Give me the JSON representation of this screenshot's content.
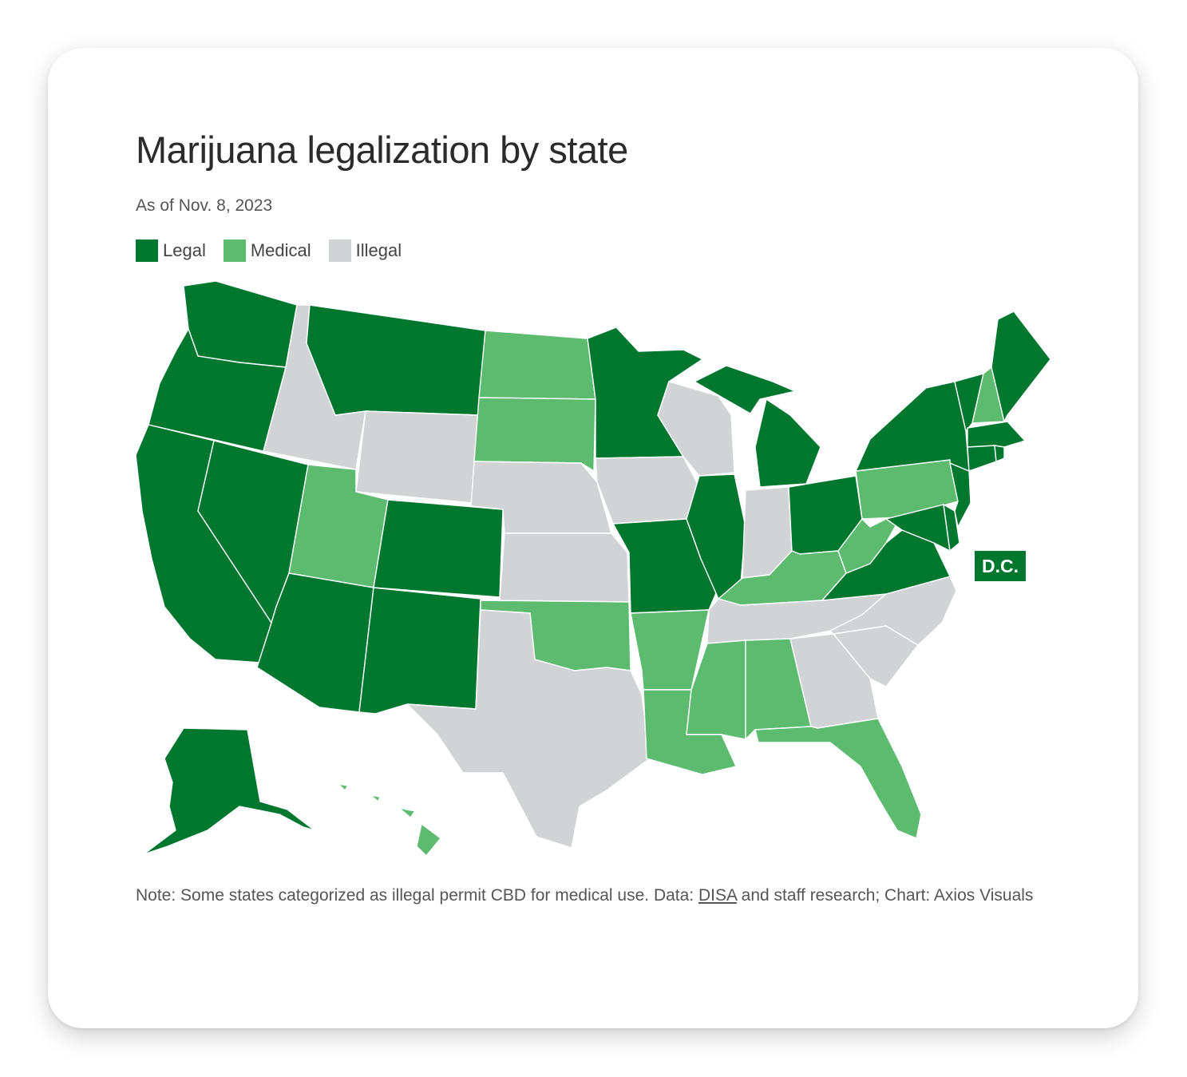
{
  "title": "Marijuana legalization by state",
  "subtitle": "As of Nov. 8, 2023",
  "legend": [
    {
      "label": "Legal",
      "color": "#00772f",
      "key": "legal"
    },
    {
      "label": "Medical",
      "color": "#5dbb70",
      "key": "medical"
    },
    {
      "label": "Illegal",
      "color": "#d1d3d4",
      "key": "illegal"
    }
  ],
  "colors": {
    "legal": "#00772f",
    "medical": "#5dbb70",
    "illegal": "#d1d3d4"
  },
  "dc_label": "D.C.",
  "note": {
    "before": "Note: Some states categorized as illegal permit CBD for medical use. Data: ",
    "link": "DISA",
    "after": " and staff research; Chart: Axios Visuals"
  },
  "states": {
    "WA": "legal",
    "OR": "legal",
    "CA": "legal",
    "NV": "legal",
    "ID": "illegal",
    "MT": "legal",
    "WY": "illegal",
    "UT": "medical",
    "AZ": "legal",
    "CO": "legal",
    "NM": "legal",
    "ND": "medical",
    "SD": "medical",
    "NE": "illegal",
    "KS": "illegal",
    "OK": "medical",
    "TX": "illegal",
    "MN": "legal",
    "IA": "illegal",
    "MO": "legal",
    "AR": "medical",
    "LA": "medical",
    "WI": "illegal",
    "IL": "legal",
    "MS": "medical",
    "MI": "legal",
    "IN": "illegal",
    "KY": "medical",
    "TN": "illegal",
    "AL": "medical",
    "OH": "legal",
    "GA": "illegal",
    "FL": "medical",
    "SC": "illegal",
    "NC": "illegal",
    "VA": "legal",
    "WV": "medical",
    "PA": "medical",
    "NY": "legal",
    "VT": "legal",
    "NH": "medical",
    "ME": "legal",
    "MA": "legal",
    "RI": "legal",
    "CT": "legal",
    "NJ": "legal",
    "DE": "legal",
    "MD": "legal",
    "DC": "legal",
    "AK": "legal",
    "HI": "medical"
  }
}
